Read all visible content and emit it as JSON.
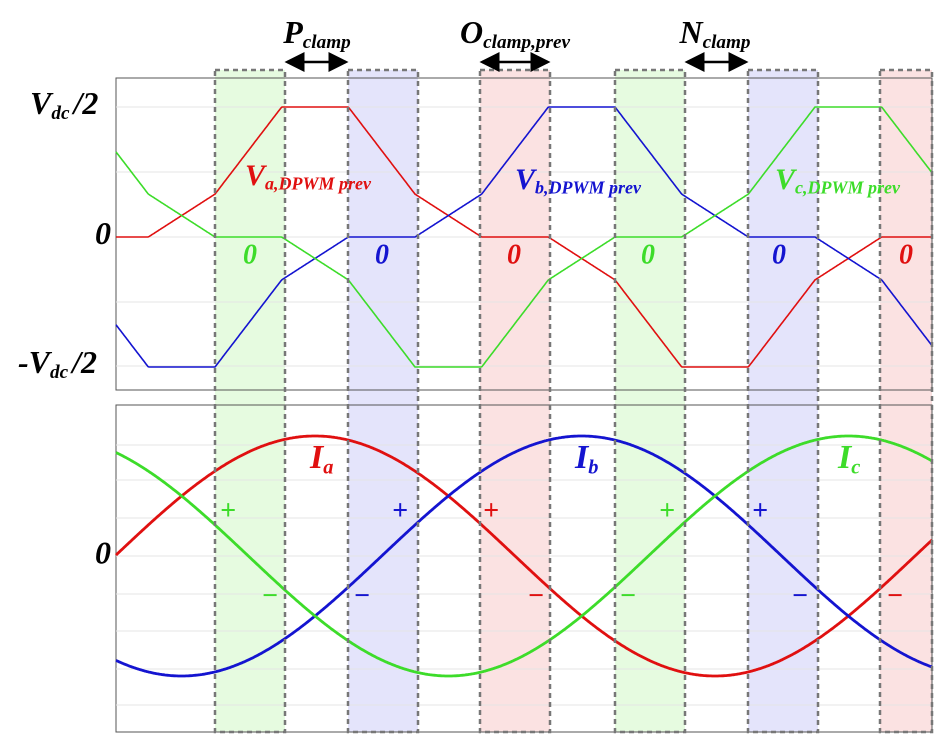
{
  "header": {
    "intervals": [
      {
        "main": "P",
        "sub": "clamp"
      },
      {
        "main": "O",
        "sub": "clamp,prev"
      },
      {
        "main": "N",
        "sub": "clamp"
      }
    ]
  },
  "top_panel": {
    "y_labels": [
      {
        "main": "V",
        "sub": "dc",
        "tail": "/2"
      },
      {
        "main": "0"
      },
      {
        "prefix": "-",
        "main": "V",
        "sub": "dc",
        "tail": "/2"
      }
    ],
    "curve_labels": [
      {
        "main": "V",
        "sub": "a,DPWM prev"
      },
      {
        "main": "V",
        "sub": "b,DPWM prev"
      },
      {
        "main": "V",
        "sub": "c,DPWM prev"
      }
    ],
    "zero_labels": [
      "0",
      "0",
      "0",
      "0",
      "0",
      "0"
    ]
  },
  "bottom_panel": {
    "y_label": "0",
    "curve_labels": [
      {
        "main": "I",
        "sub": "a"
      },
      {
        "main": "I",
        "sub": "b"
      },
      {
        "main": "I",
        "sub": "c"
      }
    ],
    "plus_labels": [
      "+",
      "+",
      "+",
      "+",
      "+"
    ],
    "minus_labels": [
      "−",
      "−",
      "−",
      "−",
      "−",
      "−"
    ]
  }
}
